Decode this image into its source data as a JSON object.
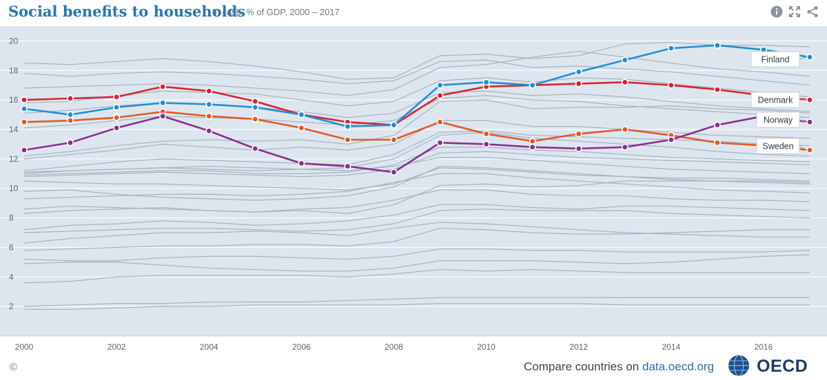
{
  "header": {
    "title": "Social benefits to households",
    "subtitle": "In cash, % of GDP, 2000 – 2017",
    "icons": [
      "info-icon",
      "fullscreen-icon",
      "share-icon"
    ]
  },
  "footer": {
    "copyright": "©",
    "compare_text": "Compare countries on ",
    "compare_link": "data.oecd.org",
    "brand": "OECD"
  },
  "chart_data": {
    "type": "line",
    "xlabel": "",
    "ylabel": "",
    "xlim": [
      2000,
      2017
    ],
    "ylim": [
      0,
      21
    ],
    "x_ticks": [
      2000,
      2002,
      2004,
      2006,
      2008,
      2010,
      2012,
      2014,
      2016
    ],
    "y_ticks": [
      2,
      4,
      6,
      8,
      10,
      12,
      14,
      16,
      18,
      20
    ],
    "grid": "horizontal",
    "colors": {
      "background": "#dde6ef",
      "grid": "#ffffff",
      "other_series": "#a6b2bd",
      "Finland": "#1f8fd4",
      "Denmark": "#d9232d",
      "Norway": "#8a2f8c",
      "Sweden": "#e05a22"
    },
    "x": [
      2000,
      2001,
      2002,
      2003,
      2004,
      2005,
      2006,
      2007,
      2008,
      2009,
      2010,
      2011,
      2012,
      2013,
      2014,
      2015,
      2016,
      2017
    ],
    "series": [
      {
        "name": "Finland",
        "highlight": true,
        "values": [
          15.4,
          15.0,
          15.5,
          15.8,
          15.7,
          15.5,
          15.0,
          14.2,
          14.3,
          17.0,
          17.2,
          17.0,
          17.9,
          18.7,
          19.5,
          19.7,
          19.4,
          18.9
        ]
      },
      {
        "name": "Denmark",
        "highlight": true,
        "values": [
          16.0,
          16.1,
          16.2,
          16.9,
          16.6,
          15.9,
          15.0,
          14.5,
          14.3,
          16.3,
          16.9,
          17.0,
          17.1,
          17.2,
          17.0,
          16.7,
          16.3,
          16.0
        ]
      },
      {
        "name": "Norway",
        "highlight": true,
        "values": [
          12.6,
          13.1,
          14.1,
          14.9,
          13.9,
          12.7,
          11.7,
          11.5,
          11.1,
          13.1,
          13.0,
          12.8,
          12.7,
          12.8,
          13.3,
          14.3,
          14.9,
          14.5
        ]
      },
      {
        "name": "Sweden",
        "highlight": true,
        "values": [
          14.5,
          14.6,
          14.8,
          15.2,
          14.9,
          14.7,
          14.1,
          13.3,
          13.3,
          14.5,
          13.7,
          13.2,
          13.7,
          14.0,
          13.6,
          13.1,
          12.9,
          12.6
        ]
      },
      {
        "values": [
          18.5,
          18.4,
          18.6,
          18.8,
          18.6,
          18.3,
          17.9,
          17.4,
          17.5,
          19.0,
          19.1,
          18.8,
          19.0,
          19.8,
          19.9,
          19.7,
          19.7,
          19.6
        ]
      },
      {
        "values": [
          17.8,
          17.6,
          17.8,
          17.9,
          17.8,
          17.6,
          17.4,
          17.1,
          17.3,
          18.6,
          18.7,
          18.2,
          18.3,
          18.1,
          17.9,
          17.6,
          17.3,
          17.0
        ]
      },
      {
        "values": [
          16.8,
          16.9,
          17.0,
          17.1,
          17.0,
          16.8,
          16.6,
          16.3,
          16.7,
          18.2,
          18.4,
          18.9,
          19.3,
          18.9,
          18.5,
          18.1,
          17.9,
          17.6
        ]
      },
      {
        "values": [
          15.8,
          15.9,
          16.3,
          16.6,
          16.5,
          16.4,
          16.0,
          15.6,
          15.9,
          17.3,
          17.5,
          17.2,
          17.5,
          17.4,
          17.1,
          16.8,
          16.5,
          16.2
        ]
      },
      {
        "values": [
          15.1,
          15.3,
          15.6,
          15.8,
          15.7,
          15.5,
          15.2,
          14.8,
          15.1,
          16.5,
          16.6,
          16.3,
          16.4,
          16.2,
          15.9,
          15.6,
          15.4,
          15.2
        ]
      },
      {
        "values": [
          14.1,
          14.3,
          14.6,
          14.9,
          14.8,
          14.7,
          14.5,
          14.3,
          14.6,
          16.1,
          16.3,
          16.0,
          15.9,
          15.6,
          15.4,
          15.2,
          15.0,
          14.8
        ]
      },
      {
        "values": [
          12.2,
          12.5,
          12.9,
          13.2,
          13.3,
          13.2,
          13.3,
          13.0,
          13.6,
          15.9,
          16.0,
          15.4,
          15.5,
          15.5,
          15.6,
          15.4,
          15.3,
          15.1
        ]
      },
      {
        "values": [
          12.0,
          12.3,
          12.6,
          13.0,
          12.8,
          12.6,
          12.8,
          12.6,
          13.0,
          14.6,
          14.6,
          14.2,
          14.2,
          14.0,
          13.8,
          13.6,
          13.5,
          13.4
        ]
      },
      {
        "values": [
          11.2,
          11.5,
          11.8,
          12.0,
          11.9,
          11.8,
          11.7,
          11.6,
          12.3,
          13.8,
          13.9,
          13.6,
          13.5,
          13.4,
          13.3,
          13.2,
          13.0,
          12.9
        ]
      },
      {
        "values": [
          11.0,
          11.2,
          11.3,
          11.4,
          11.3,
          11.2,
          11.3,
          11.4,
          12.0,
          13.6,
          13.8,
          13.4,
          13.2,
          13.0,
          12.8,
          12.5,
          12.3,
          12.2
        ]
      },
      {
        "values": [
          10.9,
          11.0,
          11.1,
          11.2,
          11.2,
          11.0,
          11.0,
          11.1,
          11.6,
          12.8,
          12.8,
          12.6,
          12.5,
          12.3,
          12.1,
          12.0,
          11.9,
          11.8
        ]
      },
      {
        "values": [
          10.8,
          10.9,
          11.0,
          11.1,
          11.0,
          10.9,
          10.8,
          10.9,
          11.3,
          12.4,
          12.5,
          12.3,
          12.1,
          12.0,
          11.9,
          11.8,
          11.7,
          11.6
        ]
      },
      {
        "values": [
          11.1,
          11.2,
          11.3,
          11.4,
          11.5,
          11.4,
          11.3,
          11.2,
          11.5,
          12.1,
          12.1,
          11.9,
          11.7,
          11.5,
          11.3,
          11.2,
          11.1,
          11.0
        ]
      },
      {
        "values": [
          10.5,
          10.4,
          10.3,
          10.3,
          10.2,
          10.1,
          10.0,
          9.9,
          10.3,
          11.4,
          11.3,
          11.1,
          10.9,
          10.8,
          10.7,
          10.7,
          10.6,
          10.5
        ]
      },
      {
        "values": [
          9.8,
          9.9,
          9.6,
          9.4,
          9.3,
          9.2,
          9.3,
          9.5,
          10.1,
          11.5,
          11.4,
          11.2,
          11.0,
          10.8,
          10.6,
          10.5,
          10.4,
          10.3
        ]
      },
      {
        "values": [
          9.3,
          9.4,
          9.5,
          9.6,
          9.6,
          9.5,
          9.6,
          9.8,
          10.4,
          11.0,
          11.0,
          10.7,
          10.5,
          10.3,
          10.1,
          9.9,
          9.8,
          9.7
        ]
      },
      {
        "values": [
          8.6,
          8.8,
          8.7,
          8.6,
          8.5,
          8.4,
          8.5,
          8.3,
          8.9,
          10.2,
          10.3,
          10.1,
          10.2,
          10.5,
          10.5,
          10.5,
          10.5,
          10.4
        ]
      },
      {
        "values": [
          8.3,
          8.5,
          8.6,
          8.7,
          8.5,
          8.4,
          8.6,
          8.7,
          9.2,
          9.9,
          9.9,
          9.6,
          9.5,
          9.5,
          9.3,
          9.2,
          9.2,
          9.1
        ]
      },
      {
        "values": [
          7.2,
          7.5,
          7.6,
          7.8,
          7.7,
          7.5,
          7.6,
          7.8,
          8.2,
          8.9,
          8.9,
          8.7,
          8.6,
          8.8,
          8.8,
          8.7,
          8.6,
          8.5
        ]
      },
      {
        "values": [
          7.0,
          7.1,
          7.2,
          7.3,
          7.3,
          7.2,
          7.1,
          7.2,
          7.6,
          8.5,
          8.6,
          8.5,
          8.5,
          8.5,
          8.3,
          8.2,
          8.1,
          8.0
        ]
      },
      {
        "values": [
          6.3,
          6.6,
          6.8,
          7.0,
          7.0,
          7.1,
          7.0,
          6.8,
          7.3,
          7.7,
          7.6,
          7.4,
          7.2,
          7.0,
          6.9,
          6.8,
          6.7,
          6.7
        ]
      },
      {
        "values": [
          5.8,
          5.9,
          6.0,
          6.1,
          6.1,
          6.2,
          6.2,
          6.1,
          6.4,
          7.3,
          7.2,
          7.0,
          6.9,
          6.9,
          7.0,
          7.1,
          7.2,
          7.2
        ]
      },
      {
        "values": [
          5.2,
          5.1,
          5.1,
          5.3,
          5.4,
          5.4,
          5.3,
          5.2,
          5.4,
          5.9,
          5.9,
          5.8,
          5.8,
          5.7,
          5.7,
          5.7,
          5.7,
          5.8
        ]
      },
      {
        "values": [
          4.9,
          5.0,
          5.0,
          4.8,
          4.6,
          4.5,
          4.4,
          4.4,
          4.6,
          5.1,
          5.1,
          5.1,
          5.0,
          4.9,
          5.0,
          5.2,
          5.4,
          5.5
        ]
      },
      {
        "values": [
          3.6,
          3.7,
          4.0,
          4.1,
          4.1,
          4.1,
          4.1,
          4.0,
          4.2,
          4.5,
          4.4,
          4.5,
          4.4,
          4.3,
          4.3,
          4.3,
          4.3,
          4.3
        ]
      },
      {
        "values": [
          2.0,
          2.1,
          2.2,
          2.2,
          2.3,
          2.3,
          2.3,
          2.4,
          2.5,
          2.6,
          2.6,
          2.6,
          2.6,
          2.6,
          2.6,
          2.6,
          2.6,
          2.6
        ]
      },
      {
        "values": [
          1.8,
          1.8,
          1.9,
          2.0,
          2.0,
          2.1,
          2.1,
          2.1,
          2.1,
          2.2,
          2.2,
          2.2,
          2.2,
          2.1,
          2.1,
          2.1,
          2.1,
          2.1
        ]
      }
    ]
  }
}
